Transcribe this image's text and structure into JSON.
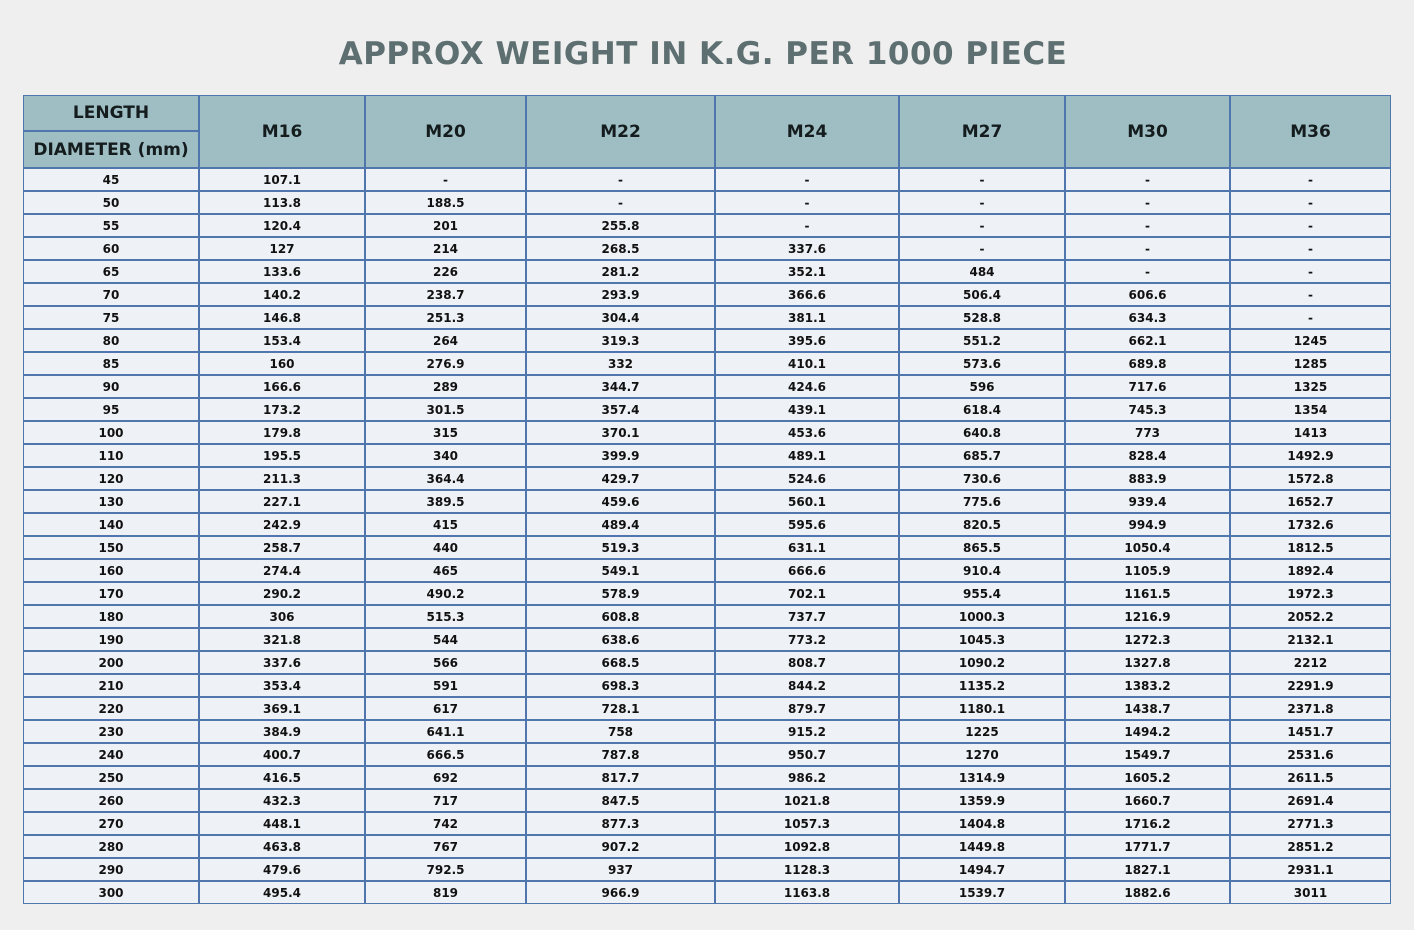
{
  "title": "APPROX WEIGHT IN K.G. PER 1000 PIECE",
  "table": {
    "corner_top_label": "LENGTH",
    "corner_bottom_label": "DIAMETER (mm)",
    "columns": [
      "M16",
      "M20",
      "M22",
      "M24",
      "M27",
      "M30",
      "M36"
    ],
    "rows": [
      {
        "length": "45",
        "values": [
          "107.1",
          "-",
          "-",
          "-",
          "-",
          "-",
          "-"
        ]
      },
      {
        "length": "50",
        "values": [
          "113.8",
          "188.5",
          "-",
          "-",
          "-",
          "-",
          "-"
        ]
      },
      {
        "length": "55",
        "values": [
          "120.4",
          "201",
          "255.8",
          "-",
          "-",
          "-",
          "-"
        ]
      },
      {
        "length": "60",
        "values": [
          "127",
          "214",
          "268.5",
          "337.6",
          "-",
          "-",
          "-"
        ]
      },
      {
        "length": "65",
        "values": [
          "133.6",
          "226",
          "281.2",
          "352.1",
          "484",
          "-",
          "-"
        ]
      },
      {
        "length": "70",
        "values": [
          "140.2",
          "238.7",
          "293.9",
          "366.6",
          "506.4",
          "606.6",
          "-"
        ]
      },
      {
        "length": "75",
        "values": [
          "146.8",
          "251.3",
          "304.4",
          "381.1",
          "528.8",
          "634.3",
          "-"
        ]
      },
      {
        "length": "80",
        "values": [
          "153.4",
          "264",
          "319.3",
          "395.6",
          "551.2",
          "662.1",
          "1245"
        ]
      },
      {
        "length": "85",
        "values": [
          "160",
          "276.9",
          "332",
          "410.1",
          "573.6",
          "689.8",
          "1285"
        ]
      },
      {
        "length": "90",
        "values": [
          "166.6",
          "289",
          "344.7",
          "424.6",
          "596",
          "717.6",
          "1325"
        ]
      },
      {
        "length": "95",
        "values": [
          "173.2",
          "301.5",
          "357.4",
          "439.1",
          "618.4",
          "745.3",
          "1354"
        ]
      },
      {
        "length": "100",
        "values": [
          "179.8",
          "315",
          "370.1",
          "453.6",
          "640.8",
          "773",
          "1413"
        ]
      },
      {
        "length": "110",
        "values": [
          "195.5",
          "340",
          "399.9",
          "489.1",
          "685.7",
          "828.4",
          "1492.9"
        ]
      },
      {
        "length": "120",
        "values": [
          "211.3",
          "364.4",
          "429.7",
          "524.6",
          "730.6",
          "883.9",
          "1572.8"
        ]
      },
      {
        "length": "130",
        "values": [
          "227.1",
          "389.5",
          "459.6",
          "560.1",
          "775.6",
          "939.4",
          "1652.7"
        ]
      },
      {
        "length": "140",
        "values": [
          "242.9",
          "415",
          "489.4",
          "595.6",
          "820.5",
          "994.9",
          "1732.6"
        ]
      },
      {
        "length": "150",
        "values": [
          "258.7",
          "440",
          "519.3",
          "631.1",
          "865.5",
          "1050.4",
          "1812.5"
        ]
      },
      {
        "length": "160",
        "values": [
          "274.4",
          "465",
          "549.1",
          "666.6",
          "910.4",
          "1105.9",
          "1892.4"
        ]
      },
      {
        "length": "170",
        "values": [
          "290.2",
          "490.2",
          "578.9",
          "702.1",
          "955.4",
          "1161.5",
          "1972.3"
        ]
      },
      {
        "length": "180",
        "values": [
          "306",
          "515.3",
          "608.8",
          "737.7",
          "1000.3",
          "1216.9",
          "2052.2"
        ]
      },
      {
        "length": "190",
        "values": [
          "321.8",
          "544",
          "638.6",
          "773.2",
          "1045.3",
          "1272.3",
          "2132.1"
        ]
      },
      {
        "length": "200",
        "values": [
          "337.6",
          "566",
          "668.5",
          "808.7",
          "1090.2",
          "1327.8",
          "2212"
        ]
      },
      {
        "length": "210",
        "values": [
          "353.4",
          "591",
          "698.3",
          "844.2",
          "1135.2",
          "1383.2",
          "2291.9"
        ]
      },
      {
        "length": "220",
        "values": [
          "369.1",
          "617",
          "728.1",
          "879.7",
          "1180.1",
          "1438.7",
          "2371.8"
        ]
      },
      {
        "length": "230",
        "values": [
          "384.9",
          "641.1",
          "758",
          "915.2",
          "1225",
          "1494.2",
          "1451.7"
        ]
      },
      {
        "length": "240",
        "values": [
          "400.7",
          "666.5",
          "787.8",
          "950.7",
          "1270",
          "1549.7",
          "2531.6"
        ]
      },
      {
        "length": "250",
        "values": [
          "416.5",
          "692",
          "817.7",
          "986.2",
          "1314.9",
          "1605.2",
          "2611.5"
        ]
      },
      {
        "length": "260",
        "values": [
          "432.3",
          "717",
          "847.5",
          "1021.8",
          "1359.9",
          "1660.7",
          "2691.4"
        ]
      },
      {
        "length": "270",
        "values": [
          "448.1",
          "742",
          "877.3",
          "1057.3",
          "1404.8",
          "1716.2",
          "2771.3"
        ]
      },
      {
        "length": "280",
        "values": [
          "463.8",
          "767",
          "907.2",
          "1092.8",
          "1449.8",
          "1771.7",
          "2851.2"
        ]
      },
      {
        "length": "290",
        "values": [
          "479.6",
          "792.5",
          "937",
          "1128.3",
          "1494.7",
          "1827.1",
          "2931.1"
        ]
      },
      {
        "length": "300",
        "values": [
          "495.4",
          "819",
          "966.9",
          "1163.8",
          "1539.7",
          "1882.6",
          "3011"
        ]
      }
    ]
  },
  "colors": {
    "title": "#5d6f70",
    "header_fill": "#9fbec4",
    "cell_fill": "#eef1f5",
    "border": "#4f76ad",
    "background": "#efefef"
  }
}
